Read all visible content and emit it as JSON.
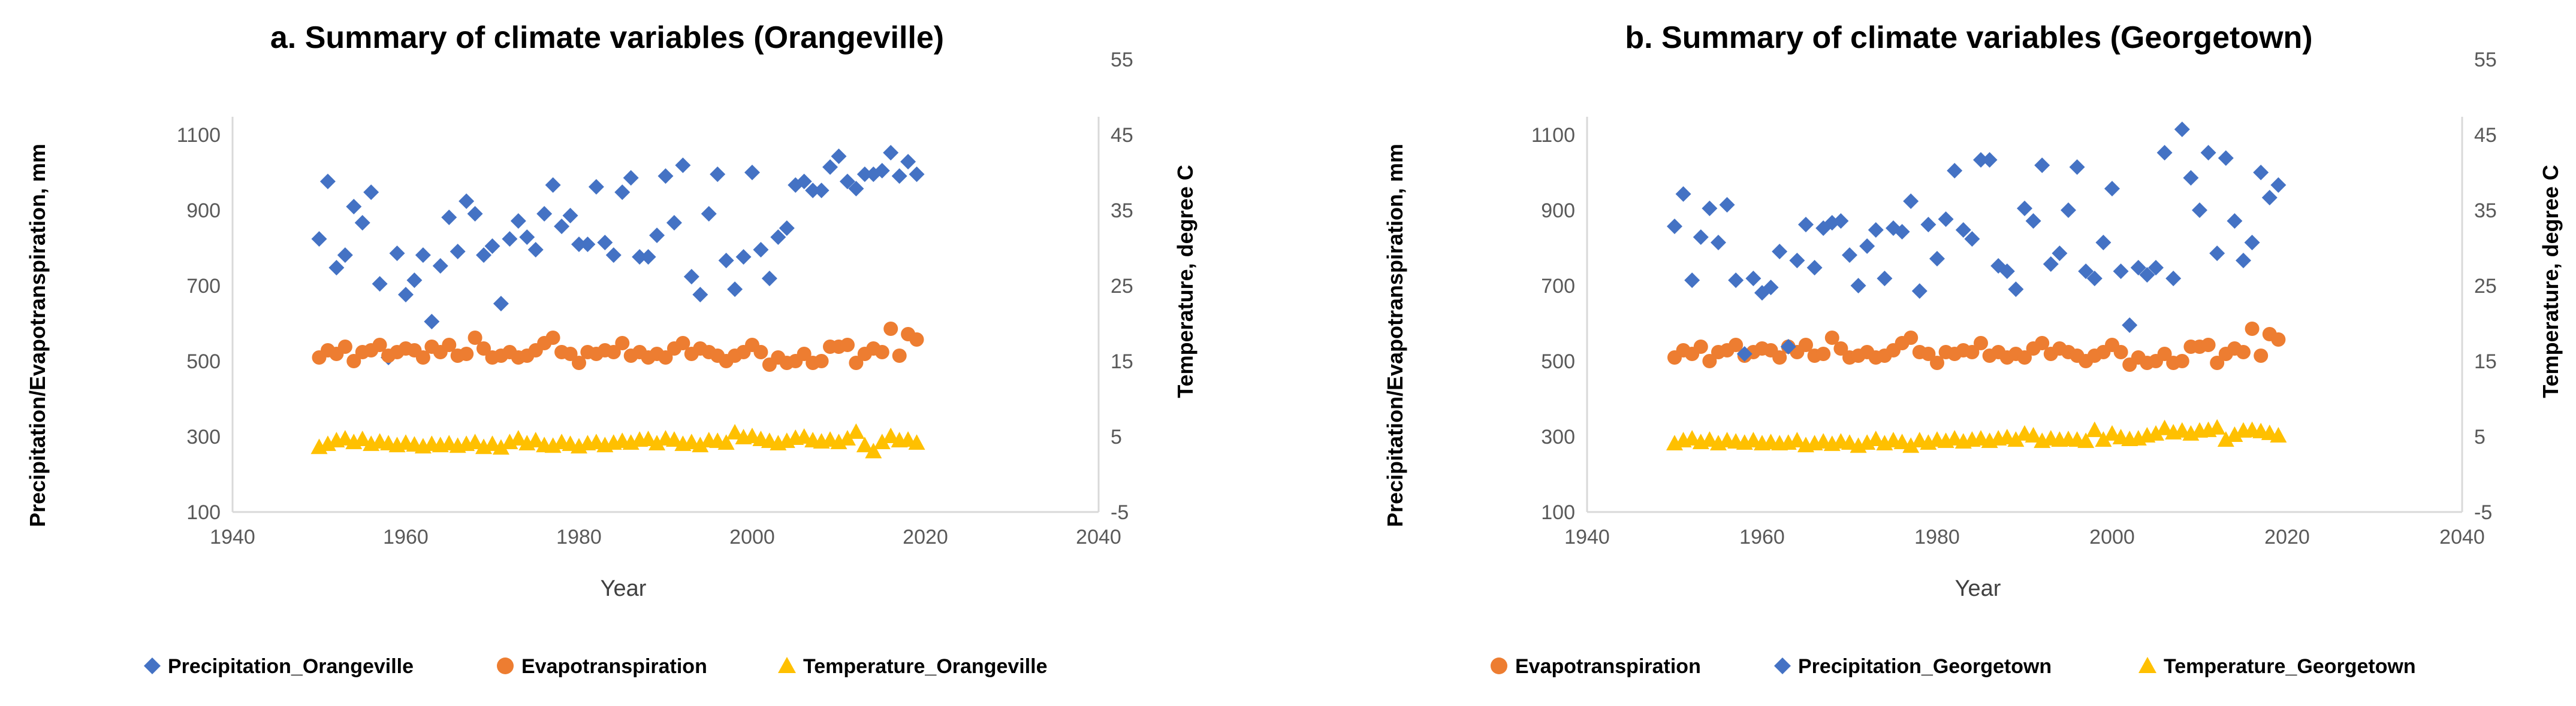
{
  "colors": {
    "precipitation": "#4472C4",
    "evapotranspiration": "#ED7D31",
    "temperature": "#FFC000",
    "axis": "#D9D9D9",
    "tick_text": "#595959"
  },
  "chart_data": [
    {
      "type": "scatter",
      "title": "a. Summary of climate variables (Orangeville)",
      "xlabel": "Year",
      "ylabel": "Precipitation/Evapotranspiration,  mm",
      "y2label": "Temperature, degree C",
      "xlim": [
        1940,
        2040
      ],
      "ylim": [
        100,
        1200
      ],
      "y2lim": [
        -5,
        60
      ],
      "xticks": [
        "1940",
        "1960",
        "1980",
        "2000",
        "2020",
        "2040"
      ],
      "yticks": [
        "100",
        "300",
        "500",
        "700",
        "900",
        "1100"
      ],
      "y2ticks": [
        "-5",
        "5",
        "15",
        "25",
        "35",
        "45",
        "55"
      ],
      "grid": false,
      "legend_position": "bottom",
      "legend": [
        "Precipitation_Orangeville",
        "Evapotranspiration",
        "Temperature_Orangeville"
      ],
      "series": [
        {
          "name": "Precipitation_Orangeville",
          "marker": "diamond",
          "axis": "left",
          "x": [
            1950,
            1951,
            1952,
            1953,
            1954,
            1955,
            1956,
            1957,
            1958,
            1959,
            1960,
            1961,
            1962,
            1963,
            1964,
            1965,
            1966,
            1967,
            1968,
            1969,
            1970,
            1971,
            1972,
            1973,
            1974,
            1975,
            1976,
            1977,
            1978,
            1979,
            1980,
            1981,
            1982,
            1983,
            1984,
            1985,
            1986,
            1987,
            1988,
            1989,
            1990,
            1991,
            1992,
            1993,
            1994,
            1995,
            1996,
            1997,
            1998,
            1999,
            2000,
            2001,
            2002,
            2003,
            2004,
            2005,
            2006,
            2007,
            2008,
            2009,
            2010,
            2011,
            2012,
            2013,
            2014,
            2015,
            2016,
            2017,
            2018,
            2019
          ],
          "y": [
            860,
            1020,
            780,
            815,
            950,
            905,
            990,
            735,
            530,
            820,
            705,
            745,
            815,
            630,
            785,
            920,
            825,
            965,
            930,
            815,
            840,
            680,
            860,
            910,
            865,
            830,
            930,
            1010,
            895,
            925,
            845,
            845,
            1005,
            850,
            815,
            990,
            1030,
            810,
            810,
            870,
            1035,
            905,
            1065,
            755,
            705,
            930,
            1040,
            800,
            720,
            810,
            1045,
            830,
            750,
            865,
            890,
            1010,
            1020,
            995,
            995,
            1060,
            1090,
            1020,
            1000,
            1040,
            1040,
            1050,
            1100,
            1035,
            1075,
            1040
          ]
        },
        {
          "name": "Evapotranspiration",
          "marker": "circle",
          "axis": "left",
          "x": [
            1950,
            1951,
            1952,
            1953,
            1954,
            1955,
            1956,
            1957,
            1958,
            1959,
            1960,
            1961,
            1962,
            1963,
            1964,
            1965,
            1966,
            1967,
            1968,
            1969,
            1970,
            1971,
            1972,
            1973,
            1974,
            1975,
            1976,
            1977,
            1978,
            1979,
            1980,
            1981,
            1982,
            1983,
            1984,
            1985,
            1986,
            1987,
            1988,
            1989,
            1990,
            1991,
            1992,
            1993,
            1994,
            1995,
            1996,
            1997,
            1998,
            1999,
            2000,
            2001,
            2002,
            2003,
            2004,
            2005,
            2006,
            2007,
            2008,
            2009,
            2010,
            2011,
            2012,
            2013,
            2014,
            2015,
            2016,
            2017,
            2018,
            2019
          ],
          "y": [
            530,
            550,
            540,
            560,
            520,
            545,
            550,
            565,
            535,
            545,
            555,
            550,
            530,
            560,
            545,
            565,
            535,
            540,
            585,
            555,
            530,
            535,
            545,
            530,
            535,
            550,
            570,
            585,
            545,
            540,
            515,
            545,
            540,
            550,
            545,
            570,
            535,
            545,
            530,
            540,
            530,
            555,
            570,
            540,
            555,
            545,
            535,
            520,
            535,
            545,
            565,
            545,
            510,
            530,
            515,
            520,
            540,
            515,
            520,
            560,
            560,
            565,
            515,
            540,
            555,
            545,
            610,
            535,
            595,
            580
          ]
        },
        {
          "name": "Temperature_Orangeville",
          "marker": "triangle",
          "axis": "right",
          "x": [
            1950,
            1951,
            1952,
            1953,
            1954,
            1955,
            1956,
            1957,
            1958,
            1959,
            1960,
            1961,
            1962,
            1963,
            1964,
            1965,
            1966,
            1967,
            1968,
            1969,
            1970,
            1971,
            1972,
            1973,
            1974,
            1975,
            1976,
            1977,
            1978,
            1979,
            1980,
            1981,
            1982,
            1983,
            1984,
            1985,
            1986,
            1987,
            1988,
            1989,
            1990,
            1991,
            1992,
            1993,
            1994,
            1995,
            1996,
            1997,
            1998,
            1999,
            2000,
            2001,
            2002,
            2003,
            2004,
            2005,
            2006,
            2007,
            2008,
            2009,
            2010,
            2011,
            2012,
            2013,
            2014,
            2015,
            2016,
            2017,
            2018,
            2019
          ],
          "y": [
            5.7,
            6.2,
            6.8,
            7.1,
            6.5,
            7.0,
            6.2,
            6.6,
            6.3,
            6.0,
            6.4,
            6.1,
            5.8,
            6.2,
            6.0,
            6.3,
            5.9,
            6.2,
            6.5,
            5.7,
            6.2,
            5.6,
            6.5,
            7.1,
            6.3,
            6.8,
            6.0,
            5.9,
            6.5,
            6.2,
            5.8,
            6.3,
            6.5,
            6.0,
            6.4,
            6.7,
            6.4,
            6.9,
            7.0,
            6.3,
            7.1,
            6.9,
            6.2,
            6.5,
            6.0,
            6.8,
            6.7,
            6.4,
            8.1,
            7.3,
            7.5,
            7.0,
            6.7,
            6.3,
            6.7,
            7.2,
            7.4,
            6.8,
            6.6,
            6.9,
            6.5,
            7.1,
            8.2,
            6.0,
            5.0,
            6.5,
            7.5,
            6.8,
            6.9,
            6.4
          ]
        }
      ]
    },
    {
      "type": "scatter",
      "title": "b. Summary of climate variables (Georgetown)",
      "xlabel": "Year",
      "ylabel": "Precipitation/Evapotranspiration,  mm",
      "y2label": "Temperature, degree C",
      "xlim": [
        1940,
        2040
      ],
      "ylim": [
        100,
        1200
      ],
      "y2lim": [
        -5,
        60
      ],
      "xticks": [
        "1940",
        "1960",
        "1980",
        "2000",
        "2020",
        "2040"
      ],
      "yticks": [
        "100",
        "300",
        "500",
        "700",
        "900",
        "1100"
      ],
      "y2ticks": [
        "-5",
        "5",
        "15",
        "25",
        "35",
        "45",
        "55"
      ],
      "grid": false,
      "legend_position": "bottom",
      "legend": [
        "Evapotranspiration",
        "Precipitation_Georgetown",
        "Temperature_Georgetown"
      ],
      "series": [
        {
          "name": "Evapotranspiration",
          "marker": "circle",
          "axis": "left",
          "x": [
            1950,
            1951,
            1952,
            1953,
            1954,
            1955,
            1956,
            1957,
            1958,
            1959,
            1960,
            1961,
            1962,
            1963,
            1964,
            1965,
            1966,
            1967,
            1968,
            1969,
            1970,
            1971,
            1972,
            1973,
            1974,
            1975,
            1976,
            1977,
            1978,
            1979,
            1980,
            1981,
            1982,
            1983,
            1984,
            1985,
            1986,
            1987,
            1988,
            1989,
            1990,
            1991,
            1992,
            1993,
            1994,
            1995,
            1996,
            1997,
            1998,
            1999,
            2000,
            2001,
            2002,
            2003,
            2004,
            2005,
            2006,
            2007,
            2008,
            2009,
            2010,
            2011,
            2012,
            2013,
            2014,
            2015,
            2016,
            2017,
            2018,
            2019
          ],
          "y": [
            530,
            550,
            540,
            560,
            520,
            545,
            550,
            565,
            535,
            545,
            555,
            550,
            530,
            560,
            545,
            565,
            535,
            540,
            585,
            555,
            530,
            535,
            545,
            530,
            535,
            550,
            570,
            585,
            545,
            540,
            515,
            545,
            540,
            550,
            545,
            570,
            535,
            545,
            530,
            540,
            530,
            555,
            570,
            540,
            555,
            545,
            535,
            520,
            535,
            545,
            565,
            545,
            510,
            530,
            515,
            520,
            540,
            515,
            520,
            560,
            560,
            565,
            515,
            540,
            555,
            545,
            610,
            535,
            595,
            580
          ]
        },
        {
          "name": "Precipitation_Georgetown",
          "marker": "diamond",
          "axis": "left",
          "x": [
            1950,
            1951,
            1952,
            1953,
            1954,
            1955,
            1956,
            1957,
            1958,
            1959,
            1960,
            1961,
            1962,
            1963,
            1964,
            1965,
            1966,
            1967,
            1968,
            1969,
            1970,
            1971,
            1972,
            1973,
            1974,
            1975,
            1976,
            1977,
            1978,
            1979,
            1980,
            1981,
            1982,
            1983,
            1984,
            1985,
            1986,
            1987,
            1988,
            1989,
            1990,
            1991,
            1992,
            1993,
            1994,
            1995,
            1996,
            1997,
            1998,
            1999,
            2000,
            2001,
            2002,
            2003,
            2004,
            2005,
            2006,
            2007,
            2008,
            2009,
            2010,
            2011,
            2012,
            2013,
            2014,
            2015,
            2016,
            2017,
            2018,
            2019
          ],
          "y": [
            895,
            985,
            745,
            865,
            945,
            850,
            955,
            745,
            540,
            750,
            710,
            725,
            825,
            560,
            800,
            900,
            780,
            890,
            905,
            910,
            815,
            730,
            840,
            885,
            750,
            890,
            880,
            965,
            715,
            900,
            805,
            915,
            1050,
            885,
            860,
            1080,
            1080,
            785,
            770,
            720,
            945,
            910,
            1065,
            790,
            820,
            940,
            1060,
            770,
            750,
            850,
            1000,
            770,
            620,
            780,
            760,
            780,
            1100,
            750,
            1165,
            1030,
            940,
            1100,
            820,
            1085,
            910,
            800,
            850,
            1045,
            975,
            1010
          ]
        },
        {
          "name": "Temperature_Georgetown",
          "marker": "triangle",
          "axis": "right",
          "x": [
            1950,
            1951,
            1952,
            1953,
            1954,
            1955,
            1956,
            1957,
            1958,
            1959,
            1960,
            1961,
            1962,
            1963,
            1964,
            1965,
            1966,
            1967,
            1968,
            1969,
            1970,
            1971,
            1972,
            1973,
            1974,
            1975,
            1976,
            1977,
            1978,
            1979,
            1980,
            1981,
            1982,
            1983,
            1984,
            1985,
            1986,
            1987,
            1988,
            1989,
            1990,
            1991,
            1992,
            1993,
            1994,
            1995,
            1996,
            1997,
            1998,
            1999,
            2000,
            2001,
            2002,
            2003,
            2004,
            2005,
            2006,
            2007,
            2008,
            2009,
            2010,
            2011,
            2012,
            2013,
            2014,
            2015,
            2016,
            2017,
            2018,
            2019
          ],
          "y": [
            6.3,
            6.8,
            7.1,
            6.5,
            6.9,
            6.3,
            6.8,
            6.6,
            6.4,
            6.8,
            6.3,
            6.5,
            6.3,
            6.4,
            6.8,
            6.0,
            6.3,
            6.6,
            6.2,
            6.6,
            6.4,
            5.9,
            6.4,
            7.0,
            6.3,
            6.8,
            6.5,
            5.9,
            6.8,
            6.4,
            6.9,
            6.7,
            7.1,
            6.6,
            6.9,
            7.1,
            6.7,
            7.1,
            7.3,
            6.9,
            7.9,
            7.6,
            6.7,
            7.1,
            6.9,
            7.0,
            6.9,
            6.7,
            8.5,
            6.9,
            7.9,
            7.3,
            7.0,
            7.1,
            7.6,
            7.9,
            8.8,
            8.1,
            8.4,
            7.9,
            8.4,
            8.5,
            8.9,
            6.9,
            7.7,
            8.4,
            8.5,
            8.3,
            8.0,
            7.6
          ]
        }
      ]
    }
  ]
}
